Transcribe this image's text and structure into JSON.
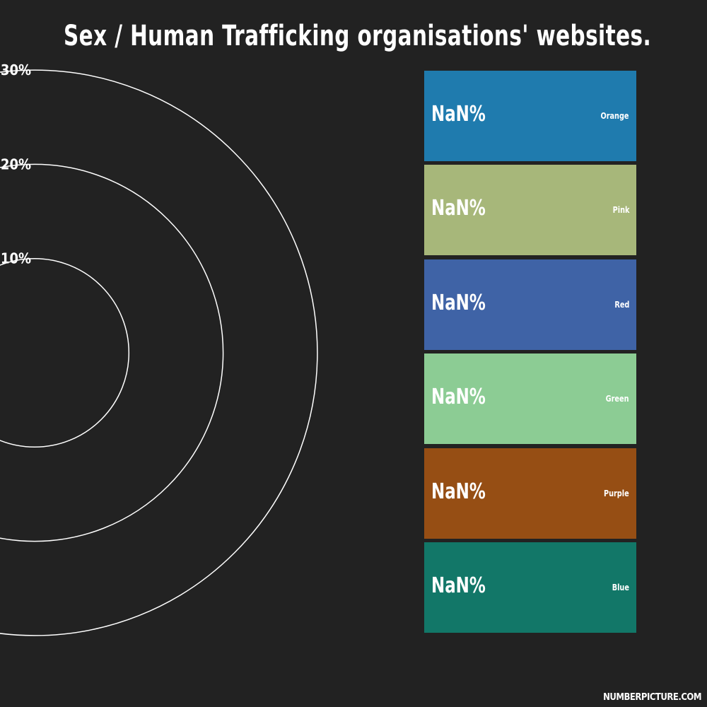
{
  "chart_data": {
    "type": "radial",
    "title": "Sex / Human Trafficking organisations' websites.",
    "ring_ticks": [
      "10%",
      "20%",
      "30%"
    ],
    "ring_values": [
      10,
      20,
      30
    ],
    "legend": [
      {
        "name": "Orange",
        "value_label": "NaN%",
        "color": "#1f7bae"
      },
      {
        "name": "Pink",
        "value_label": "NaN%",
        "color": "#a7b77a"
      },
      {
        "name": "Red",
        "value_label": "NaN%",
        "color": "#3f63a6"
      },
      {
        "name": "Green",
        "value_label": "NaN%",
        "color": "#8ccc94"
      },
      {
        "name": "Purple",
        "value_label": "NaN%",
        "color": "#964e14"
      },
      {
        "name": "Blue",
        "value_label": "NaN%",
        "color": "#127768"
      }
    ]
  },
  "watermark": "NUMBERPICTURE.COM"
}
